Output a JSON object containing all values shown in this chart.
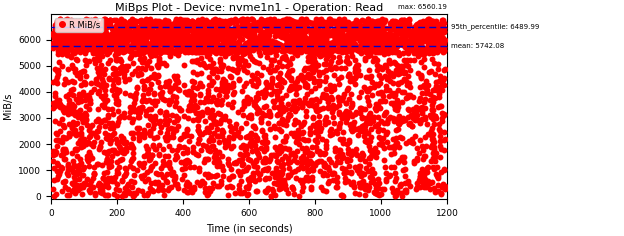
{
  "title": "MiBps Plot - Device: nvme1n1 - Operation: Read",
  "xlabel": "Time (in seconds)",
  "ylabel": "MiB/s",
  "xlim": [
    0,
    1200
  ],
  "ylim": [
    -100,
    7000
  ],
  "x_ticks": [
    0,
    200,
    400,
    600,
    800,
    1000,
    1200
  ],
  "y_ticks": [
    0,
    1000,
    2000,
    3000,
    4000,
    5000,
    6000
  ],
  "percentile_95": 6489.99,
  "mean": 5742.08,
  "max_val": 6560.19,
  "dot_color": "#ff0000",
  "mean_line_color": "#0000cd",
  "percentile_line_color": "#0000cd",
  "legend_label": "R MiB/s",
  "n_points": 5000,
  "seed": 42,
  "bg_color": "#ffffff",
  "dot_size": 18,
  "top_annotation": "95th_percentile: 6489.99",
  "max_annotation": "max: 6560.19",
  "mean_annotation": "mean: 5742.08",
  "legend_dot_color": "#ff0000",
  "legend_line_color": "#0000cd"
}
